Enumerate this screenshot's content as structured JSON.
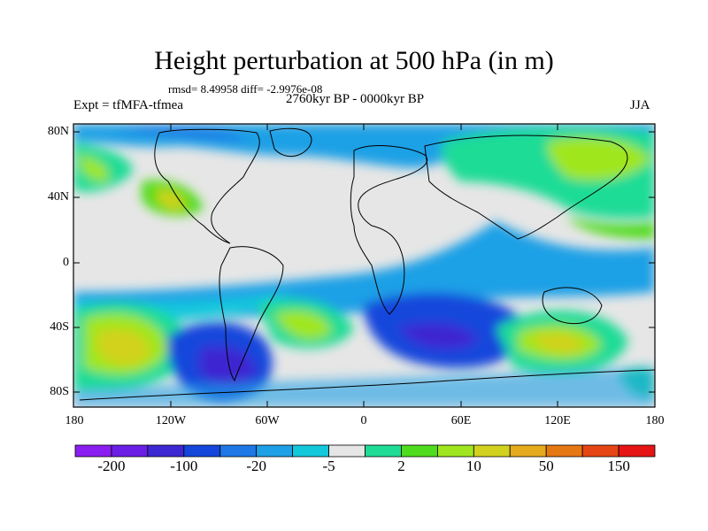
{
  "title": "Height perturbation at 500 hPa (in m)",
  "stats": "rmsd= 8.49958  diff= -2.9976e-08",
  "experiment": "Expt = tfMFA-tfmea",
  "period": "2760kyr BP - 0000kyr BP",
  "season": "JJA",
  "lat_labels": [
    "80N",
    "40N",
    "0",
    "40S",
    "80S"
  ],
  "lon_labels": [
    "180",
    "120W",
    "60W",
    "0",
    "60E",
    "120E",
    "180"
  ],
  "colorbar": {
    "labels": [
      "-200",
      "-100",
      "-20",
      "-5",
      "2",
      "10",
      "50",
      "150"
    ],
    "colors": [
      "#8a1ef0",
      "#6a1ee6",
      "#3c28d2",
      "#1446dc",
      "#1e78e6",
      "#1ea0e6",
      "#14c8dc",
      "#e6e6e6",
      "#1edc96",
      "#50dc1e",
      "#a0e61e",
      "#d2d21e",
      "#e6aa1e",
      "#e67814",
      "#e64614",
      "#e61414"
    ]
  },
  "colors": {
    "land_outline": "#000000",
    "neutral": "#e6e6e6"
  }
}
